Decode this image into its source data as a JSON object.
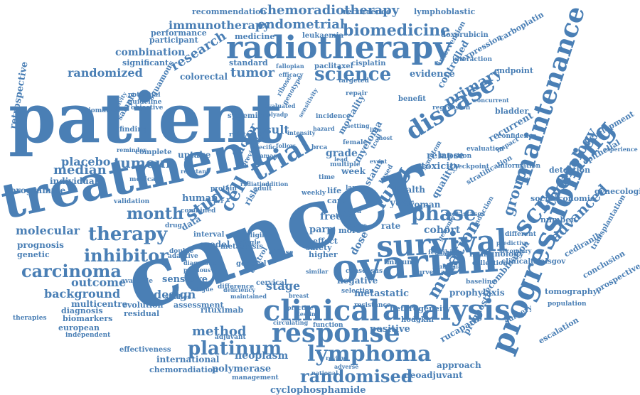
{
  "color": "#4a7fb5",
  "words": [
    {
      "text": "patient"
    },
    {
      "text": "cancer"
    },
    {
      "text": "treatment"
    },
    {
      "text": "ovarian"
    },
    {
      "text": "survival"
    },
    {
      "text": "radiotherapy"
    },
    {
      "text": "trial"
    },
    {
      "text": "clinical"
    },
    {
      "text": "analysis"
    },
    {
      "text": "response"
    },
    {
      "text": "progression"
    },
    {
      "text": "lymphoma"
    },
    {
      "text": "disease"
    },
    {
      "text": "maintenance"
    },
    {
      "text": "screening"
    },
    {
      "text": "therapy"
    },
    {
      "text": "phase"
    },
    {
      "text": "inhibitor"
    },
    {
      "text": "carcinoma"
    },
    {
      "text": "randomised"
    },
    {
      "text": "platinum"
    },
    {
      "text": "science"
    },
    {
      "text": "study"
    },
    {
      "text": "month"
    },
    {
      "text": "tumour"
    },
    {
      "text": "chemoradiotherapy"
    },
    {
      "text": "biomedicine"
    },
    {
      "text": "endometrial"
    },
    {
      "text": "immunotherapy"
    },
    {
      "text": "lung"
    },
    {
      "text": "tumor"
    },
    {
      "text": "randomized"
    },
    {
      "text": "combination"
    },
    {
      "text": "technology"
    },
    {
      "text": "advanced"
    },
    {
      "text": "mutation"
    },
    {
      "text": "cell"
    },
    {
      "text": "method"
    },
    {
      "text": "primary"
    },
    {
      "text": "group"
    },
    {
      "text": "median"
    },
    {
      "text": "molecular"
    },
    {
      "text": "placebo"
    },
    {
      "text": "outcome"
    },
    {
      "text": "background"
    },
    {
      "text": "design"
    },
    {
      "text": "result"
    },
    {
      "text": "stage"
    },
    {
      "text": "cohort"
    },
    {
      "text": "year"
    },
    {
      "text": "neoplasm"
    },
    {
      "text": "international"
    },
    {
      "text": "cyclophosphamide"
    },
    {
      "text": "polymerase"
    },
    {
      "text": "chemoradiation"
    },
    {
      "text": "research"
    },
    {
      "text": "recommendation"
    },
    {
      "text": "recurrence"
    },
    {
      "text": "lymphoblastic"
    },
    {
      "text": "participant"
    },
    {
      "text": "performance"
    },
    {
      "text": "significant"
    },
    {
      "text": "medicine"
    },
    {
      "text": "leukaemia"
    },
    {
      "text": "doxorubicin"
    },
    {
      "text": "colorectal"
    },
    {
      "text": "standard"
    },
    {
      "text": "paclitaxel"
    },
    {
      "text": "cisplatin"
    },
    {
      "text": "evidence"
    },
    {
      "text": "controlled"
    },
    {
      "text": "endpoint"
    },
    {
      "text": "expression"
    },
    {
      "text": "carboplatin"
    },
    {
      "text": "intervention"
    },
    {
      "text": "retrospective"
    },
    {
      "text": "biomarker"
    },
    {
      "text": "mortality"
    },
    {
      "text": "myeloma"
    },
    {
      "text": "uptake"
    },
    {
      "text": "factor"
    },
    {
      "text": "grade"
    },
    {
      "text": "complete"
    },
    {
      "text": "programme"
    },
    {
      "text": "individual"
    },
    {
      "text": "human"
    },
    {
      "text": "risk"
    },
    {
      "text": "data"
    },
    {
      "text": "model"
    },
    {
      "text": "free"
    },
    {
      "text": "parp"
    },
    {
      "text": "effect"
    },
    {
      "text": "rate"
    },
    {
      "text": "dose"
    },
    {
      "text": "more"
    },
    {
      "text": "safety"
    },
    {
      "text": "higher"
    },
    {
      "text": "toxicity"
    },
    {
      "text": "relapse"
    },
    {
      "text": "quality"
    },
    {
      "text": "woman"
    },
    {
      "text": "health"
    },
    {
      "text": "life"
    },
    {
      "text": "care"
    },
    {
      "text": "week"
    },
    {
      "text": "status"
    },
    {
      "text": "recurrent"
    },
    {
      "text": "benefit"
    },
    {
      "text": "bladder"
    },
    {
      "text": "detection"
    },
    {
      "text": "epithelial"
    },
    {
      "text": "development"
    },
    {
      "text": "experience"
    },
    {
      "text": "gynecologic"
    },
    {
      "text": "socioeconomic"
    },
    {
      "text": "number"
    },
    {
      "text": "cediranib"
    },
    {
      "text": "conclusion"
    },
    {
      "text": "prospective"
    },
    {
      "text": "transplantation"
    },
    {
      "text": "tomography"
    },
    {
      "text": "population"
    },
    {
      "text": "clinicaltrialsgov"
    },
    {
      "text": "immunology"
    },
    {
      "text": "baseline"
    },
    {
      "text": "prophylaxis"
    },
    {
      "text": "surgery"
    },
    {
      "text": "escalation"
    },
    {
      "text": "recombination"
    },
    {
      "text": "prognostic"
    },
    {
      "text": "rucaparib"
    },
    {
      "text": "approach"
    },
    {
      "text": "neoadjuvant"
    },
    {
      "text": "heterogeneity"
    },
    {
      "text": "hodgkin"
    },
    {
      "text": "positive"
    },
    {
      "text": "metastatic"
    },
    {
      "text": "immune"
    },
    {
      "text": "consensus"
    },
    {
      "text": "negative"
    },
    {
      "text": "genetic"
    },
    {
      "text": "prognosis"
    },
    {
      "text": "therapies"
    },
    {
      "text": "multicentre"
    },
    {
      "text": "diagnosis"
    },
    {
      "text": "biomarkers"
    },
    {
      "text": "european"
    },
    {
      "text": "independent"
    },
    {
      "text": "effectiveness"
    },
    {
      "text": "management"
    },
    {
      "text": "assessment"
    },
    {
      "text": "rituximab"
    },
    {
      "text": "adjuvant"
    },
    {
      "text": "difference"
    },
    {
      "text": "residual"
    },
    {
      "text": "evolution"
    },
    {
      "text": "sensitive"
    },
    {
      "text": "studies"
    },
    {
      "text": "validation"
    },
    {
      "text": "systemic"
    },
    {
      "text": "related"
    },
    {
      "text": "interval"
    },
    {
      "text": "adaptive"
    },
    {
      "text": "eligible"
    },
    {
      "text": "single"
    },
    {
      "text": "finding"
    },
    {
      "text": "sample"
    },
    {
      "text": "activity"
    },
    {
      "text": "squamous"
    },
    {
      "text": "potential"
    },
    {
      "text": "guideline"
    },
    {
      "text": "objective"
    },
    {
      "text": "resistance"
    },
    {
      "text": "infection"
    },
    {
      "text": "checkpoint"
    },
    {
      "text": "multiple"
    },
    {
      "text": "based"
    },
    {
      "text": "aged"
    },
    {
      "text": "term"
    },
    {
      "text": "score"
    },
    {
      "text": "cervical"
    },
    {
      "text": "general"
    },
    {
      "text": "practice"
    },
    {
      "text": "selection"
    },
    {
      "text": "breast"
    },
    {
      "text": "radiation"
    },
    {
      "text": "deficiency"
    },
    {
      "text": "circulating"
    },
    {
      "text": "review"
    },
    {
      "text": "national"
    },
    {
      "text": "adverse"
    },
    {
      "text": "control"
    },
    {
      "text": "diffuse"
    },
    {
      "text": "surveillance"
    },
    {
      "text": "feasibility"
    },
    {
      "text": "interaction"
    },
    {
      "text": "symptom"
    },
    {
      "text": "fallopian"
    },
    {
      "text": "efficacy"
    },
    {
      "text": "targeted"
    },
    {
      "text": "repair"
    },
    {
      "text": "medical"
    },
    {
      "text": "protein"
    },
    {
      "text": "double"
    },
    {
      "text": "diagnostic"
    },
    {
      "text": "specific"
    },
    {
      "text": "reminder"
    },
    {
      "text": "resistant"
    },
    {
      "text": "regression"
    },
    {
      "text": "evaluation"
    },
    {
      "text": "confidence"
    },
    {
      "text": "information"
    },
    {
      "text": "concurrent"
    },
    {
      "text": "impact"
    },
    {
      "text": "stratification"
    },
    {
      "text": "metastases"
    },
    {
      "text": "induction"
    },
    {
      "text": "different"
    },
    {
      "text": "predictive"
    },
    {
      "text": "secondary"
    },
    {
      "text": "collection"
    },
    {
      "text": "genome"
    },
    {
      "text": "leukemia"
    },
    {
      "text": "analyse"
    },
    {
      "text": "combined"
    },
    {
      "text": "metastasis"
    },
    {
      "text": "previous"
    },
    {
      "text": "available"
    },
    {
      "text": "maintained"
    },
    {
      "text": "fatigue"
    },
    {
      "text": "function"
    },
    {
      "text": "testing"
    },
    {
      "text": "weekly"
    },
    {
      "text": "similar"
    },
    {
      "text": "damage"
    },
    {
      "text": "previously"
    },
    {
      "text": "addition"
    },
    {
      "text": "evaluated"
    },
    {
      "text": "polyadp"
    },
    {
      "text": "genotype"
    },
    {
      "text": "ribose"
    },
    {
      "text": "hazard"
    },
    {
      "text": "incidence"
    },
    {
      "text": "sensitivity"
    },
    {
      "text": "intensity"
    },
    {
      "text": "follow"
    },
    {
      "text": "drug"
    },
    {
      "text": "setting"
    },
    {
      "text": "time"
    },
    {
      "text": "line"
    },
    {
      "text": "most"
    },
    {
      "text": "event"
    },
    {
      "text": "tcell"
    },
    {
      "text": "adult"
    },
    {
      "text": "pcr"
    },
    {
      "text": "brca"
    },
    {
      "text": "female"
    },
    {
      "text": "large"
    },
    {
      "text": "lead"
    }
  ]
}
